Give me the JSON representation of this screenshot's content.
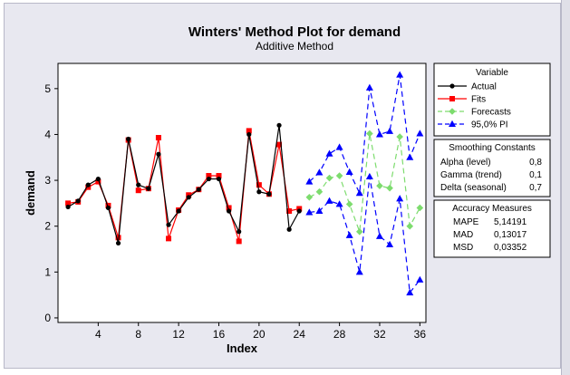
{
  "chart_data": {
    "type": "line",
    "title": "Winters' Method Plot for demand",
    "subtitle": "Additive Method",
    "xlabel": "Index",
    "ylabel": "demand",
    "xlim": [
      0,
      36.6
    ],
    "ylim": [
      -0.1,
      5.55
    ],
    "xticks": [
      4,
      8,
      12,
      16,
      20,
      24,
      28,
      32,
      36
    ],
    "xtick_labels": [
      "4",
      "8",
      "12",
      "16",
      "20",
      "24",
      "28",
      "32",
      "36"
    ],
    "yticks": [
      0,
      1,
      2,
      3,
      4,
      5
    ],
    "ytick_labels": [
      "0",
      "1",
      "2",
      "3",
      "4",
      "5"
    ],
    "grid": false,
    "legend_title": "Variable",
    "series": [
      {
        "name": "Actual",
        "color": "#000000",
        "marker": "circle",
        "dash": "solid",
        "x": [
          1,
          2,
          3,
          4,
          5,
          6,
          7,
          8,
          9,
          10,
          11,
          12,
          13,
          14,
          15,
          16,
          17,
          18,
          19,
          20,
          21,
          22,
          23,
          24
        ],
        "y": [
          2.42,
          2.55,
          2.9,
          3.03,
          2.4,
          1.63,
          3.9,
          2.9,
          2.82,
          3.57,
          2.03,
          2.33,
          2.63,
          2.8,
          3.03,
          3.03,
          2.33,
          1.88,
          4.0,
          2.75,
          2.7,
          4.2,
          1.93,
          2.33
        ]
      },
      {
        "name": "Fits",
        "color": "#ff0000",
        "marker": "square",
        "dash": "solid",
        "x": [
          1,
          2,
          3,
          4,
          5,
          6,
          7,
          8,
          9,
          10,
          11,
          12,
          13,
          14,
          15,
          16,
          17,
          18,
          19,
          20,
          21,
          22,
          23,
          24
        ],
        "y": [
          2.5,
          2.53,
          2.85,
          2.97,
          2.45,
          1.75,
          3.88,
          2.78,
          2.82,
          3.93,
          1.73,
          2.35,
          2.68,
          2.8,
          3.1,
          3.1,
          2.4,
          1.67,
          4.08,
          2.9,
          2.7,
          3.78,
          2.33,
          2.38
        ]
      },
      {
        "name": "Forecasts",
        "color": "#7ddc6e",
        "marker": "diamond",
        "dash": "dashed",
        "x": [
          25,
          26,
          27,
          28,
          29,
          30,
          31,
          32,
          33,
          34,
          35,
          36
        ],
        "y": [
          2.63,
          2.75,
          3.05,
          3.1,
          2.48,
          1.88,
          4.02,
          2.88,
          2.83,
          3.95,
          2.0,
          2.4
        ]
      },
      {
        "name": "95,0% PI",
        "color": "#0000ff",
        "marker": "triangle",
        "dash": "dashed",
        "x": [
          25,
          26,
          27,
          28,
          29,
          30,
          31,
          32,
          33,
          34,
          35,
          36
        ],
        "upper": [
          2.97,
          3.17,
          3.58,
          3.72,
          3.18,
          2.72,
          5.02,
          4.0,
          4.07,
          5.3,
          3.5,
          4.02
        ],
        "lower": [
          2.3,
          2.33,
          2.55,
          2.48,
          1.8,
          1.0,
          3.08,
          1.78,
          1.6,
          2.6,
          0.55,
          0.83
        ]
      }
    ],
    "smoothing_constants": {
      "title": "Smoothing Constants",
      "rows": [
        {
          "label": "Alpha (level)",
          "value": "0,8"
        },
        {
          "label": "Gamma (trend)",
          "value": "0,1"
        },
        {
          "label": "Delta (seasonal)",
          "value": "0,7"
        }
      ]
    },
    "accuracy_measures": {
      "title": "Accuracy Measures",
      "rows": [
        {
          "label": "MAPE",
          "value": "5,14191"
        },
        {
          "label": "MAD",
          "value": "0,13017"
        },
        {
          "label": "MSD",
          "value": "0,03352"
        }
      ]
    }
  }
}
